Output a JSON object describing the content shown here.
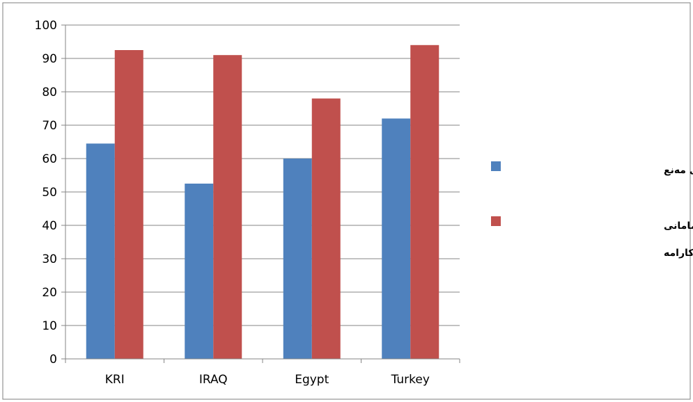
{
  "chart_data": {
    "type": "bar",
    "title": "",
    "xlabel": "",
    "ylabel": "",
    "categories": [
      "KRI",
      "IRAQ",
      "Egypt",
      "Turkey"
    ],
    "series": [
      {
        "name": "ڕێژەی بەکارهێنانی مەنع",
        "color": "#4F81BD",
        "values": [
          64.5,
          52.5,
          60,
          72
        ]
      },
      {
        "name": "منداڵبوون لەسەر دەستی مامانی کارامە",
        "color": "#C0504D",
        "values": [
          92.5,
          91,
          78,
          94
        ]
      }
    ],
    "ylim": [
      0,
      100
    ],
    "yticks": [
      0,
      10,
      20,
      30,
      40,
      50,
      60,
      70,
      80,
      90,
      100
    ],
    "grid": true,
    "legend_position": "right",
    "legend_lines": [
      [
        "ڕێژەی بەکارهێنانی مەنع"
      ],
      [
        "منداڵبوون لەسەر دەستی مامانی",
        "کارامە"
      ]
    ]
  }
}
